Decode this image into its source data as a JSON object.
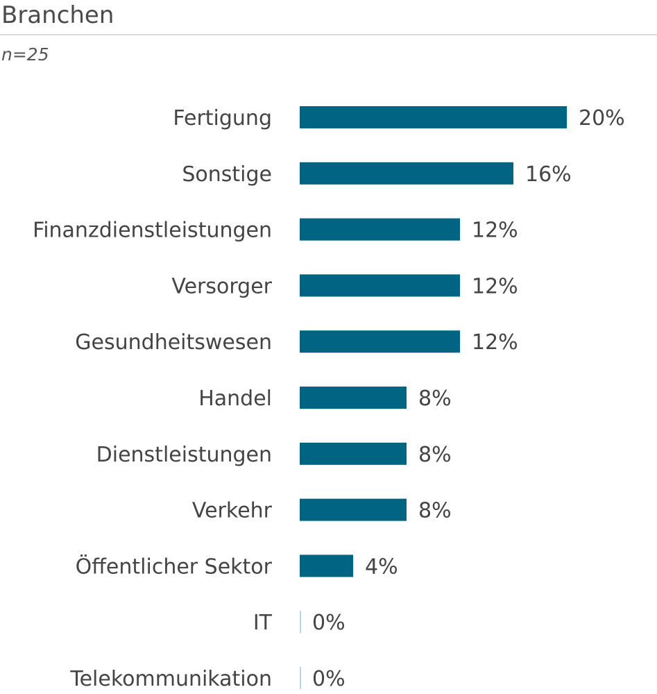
{
  "chart_data": {
    "type": "bar",
    "orientation": "horizontal",
    "title": "Branchen",
    "subtitle": "n=25",
    "categories": [
      "Fertigung",
      "Sonstige",
      "Finanzdienstleistungen",
      "Versorger",
      "Gesundheitswesen",
      "Handel",
      "Dienstleistungen",
      "Verkehr",
      "Öffentlicher Sektor",
      "IT",
      "Telekommunikation"
    ],
    "values": [
      20,
      16,
      12,
      12,
      12,
      8,
      8,
      8,
      4,
      0,
      0
    ],
    "value_labels": [
      "20%",
      "16%",
      "12%",
      "12%",
      "12%",
      "8%",
      "8%",
      "8%",
      "4%",
      "0%",
      "0%"
    ],
    "unit": "%",
    "xlim": [
      0,
      20
    ],
    "grid": false,
    "legend": "none",
    "colors": {
      "bar": "#006482",
      "zero_bar": "#b9d6df",
      "text": "#444444"
    }
  }
}
